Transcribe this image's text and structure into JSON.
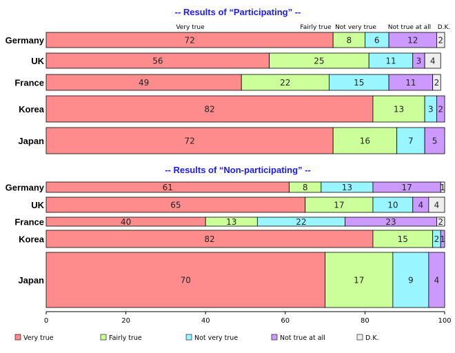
{
  "chart_data": {
    "type": "bar",
    "orientation": "horizontal",
    "stacked": true,
    "xlim": [
      0,
      100
    ],
    "x_ticks": [
      "0",
      "20",
      "40",
      "60",
      "80",
      "100"
    ],
    "legend_position": "bottom",
    "series_names": [
      "Very true",
      "Fairly true",
      "Not very true",
      "Not true at all",
      "D.K."
    ],
    "colors": [
      "#ff8c8c",
      "#ccff99",
      "#99f5ff",
      "#cc99ff",
      "#eeeeee"
    ],
    "header_labels": [
      "Very true",
      "Fairly true",
      "Not very true",
      "Not true at all",
      "D.K."
    ],
    "panels": [
      {
        "title": "-- Results of “Participating” --",
        "categories": [
          "Germany",
          "UK",
          "France",
          "Korea",
          "Japan"
        ],
        "values": [
          [
            72,
            8,
            6,
            12,
            2
          ],
          [
            56,
            25,
            11,
            3,
            4
          ],
          [
            49,
            22,
            15,
            11,
            2
          ],
          [
            82,
            13,
            3,
            2,
            0
          ],
          [
            72,
            16,
            7,
            5,
            0
          ]
        ]
      },
      {
        "title": "-- Results of “Non-participating” --",
        "categories": [
          "Germany",
          "UK",
          "France",
          "Korea",
          "Japan"
        ],
        "values": [
          [
            61,
            8,
            13,
            17,
            1
          ],
          [
            65,
            17,
            10,
            4,
            4
          ],
          [
            40,
            13,
            22,
            23,
            2
          ],
          [
            82,
            15,
            2,
            1,
            0
          ],
          [
            70,
            17,
            9,
            4,
            0
          ]
        ]
      }
    ]
  }
}
